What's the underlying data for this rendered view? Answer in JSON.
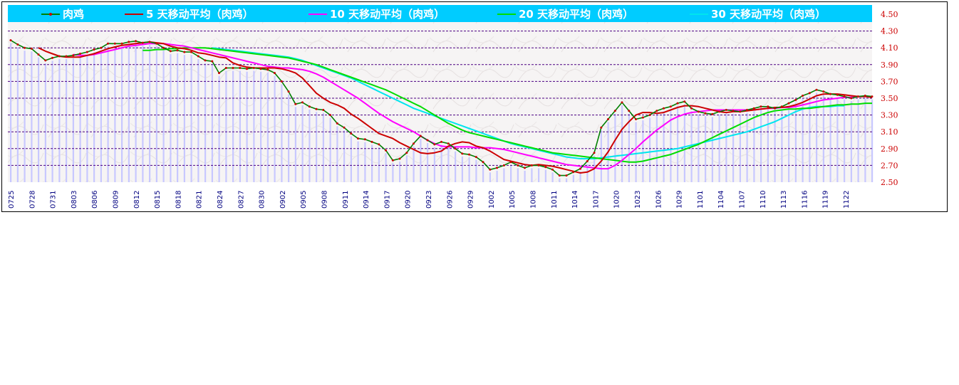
{
  "chart_data": {
    "type": "line",
    "legend_position": "top",
    "colors": {
      "legend_bg": "#00ccff",
      "grid": "#4b0082",
      "bars": "#c8c8ff",
      "ytick": "#cc0000",
      "xtick": "#000080"
    },
    "ylim": [
      2.5,
      4.5
    ],
    "yticks": [
      "4.50",
      "4.30",
      "4.10",
      "3.90",
      "3.70",
      "3.50",
      "3.30",
      "3.10",
      "2.90",
      "2.70",
      "2.50"
    ],
    "xtick_labels": [
      "0725",
      "0728",
      "0731",
      "0803",
      "0806",
      "0809",
      "0812",
      "0815",
      "0818",
      "0821",
      "0824",
      "0827",
      "0830",
      "0902",
      "0905",
      "0908",
      "0911",
      "0914",
      "0917",
      "0920",
      "0923",
      "0926",
      "0929",
      "1002",
      "1005",
      "1008",
      "1011",
      "1014",
      "1017",
      "1020",
      "1023",
      "1026",
      "1029",
      "1101",
      "1104",
      "1107",
      "1110",
      "1113",
      "1116",
      "1119",
      "1122"
    ],
    "series": [
      {
        "name": "肉鸡",
        "color": "#008000",
        "marker_color": "#cc0000",
        "values": [
          4.19,
          4.14,
          4.1,
          4.09,
          4.02,
          3.95,
          3.98,
          4.0,
          4.0,
          4.01,
          4.03,
          4.05,
          4.08,
          4.1,
          4.15,
          4.15,
          4.15,
          4.17,
          4.18,
          4.16,
          4.17,
          4.15,
          4.1,
          4.06,
          4.07,
          4.05,
          4.05,
          4.0,
          3.95,
          3.94,
          3.8,
          3.86,
          3.86,
          3.86,
          3.85,
          3.86,
          3.85,
          3.84,
          3.8,
          3.7,
          3.58,
          3.43,
          3.45,
          3.4,
          3.37,
          3.36,
          3.3,
          3.2,
          3.15,
          3.08,
          3.02,
          3.01,
          2.98,
          2.95,
          2.88,
          2.76,
          2.78,
          2.85,
          2.96,
          3.05,
          3.0,
          2.95,
          2.98,
          2.96,
          2.9,
          2.84,
          2.83,
          2.8,
          2.74,
          2.65,
          2.67,
          2.7,
          2.74,
          2.7,
          2.67,
          2.7,
          2.7,
          2.68,
          2.65,
          2.58,
          2.58,
          2.62,
          2.66,
          2.75,
          2.85,
          3.15,
          3.25,
          3.35,
          3.45,
          3.35,
          3.25,
          3.27,
          3.3,
          3.35,
          3.38,
          3.4,
          3.44,
          3.46,
          3.38,
          3.34,
          3.32,
          3.31,
          3.34,
          3.36,
          3.35,
          3.34,
          3.36,
          3.38,
          3.4,
          3.4,
          3.38,
          3.4,
          3.44,
          3.48,
          3.53,
          3.56,
          3.6,
          3.58,
          3.55,
          3.54,
          3.52,
          3.5,
          3.52,
          3.53,
          3.52
        ]
      },
      {
        "name": "5  天移动平均（肉鸡）",
        "color": "#cc0000",
        "start": 4,
        "values": [
          4.1,
          4.06,
          4.03,
          4.0,
          3.99,
          3.99,
          3.99,
          4.01,
          4.03,
          4.06,
          4.09,
          4.11,
          4.13,
          4.14,
          4.15,
          4.16,
          4.17,
          4.16,
          4.15,
          4.12,
          4.1,
          4.09,
          4.07,
          4.04,
          4.03,
          4.01,
          3.99,
          3.98,
          3.92,
          3.89,
          3.87,
          3.86,
          3.86,
          3.86,
          3.86,
          3.85,
          3.83,
          3.8,
          3.74,
          3.65,
          3.56,
          3.5,
          3.45,
          3.42,
          3.38,
          3.31,
          3.26,
          3.2,
          3.14,
          3.08,
          3.05,
          3.02,
          2.97,
          2.93,
          2.89,
          2.85,
          2.84,
          2.85,
          2.87,
          2.93,
          2.96,
          2.98,
          2.97,
          2.93,
          2.91,
          2.87,
          2.82,
          2.77,
          2.75,
          2.73,
          2.71,
          2.7,
          2.71,
          2.7,
          2.69,
          2.67,
          2.65,
          2.63,
          2.61,
          2.62,
          2.66,
          2.75,
          2.86,
          3.0,
          3.13,
          3.22,
          3.3,
          3.33,
          3.33,
          3.32,
          3.33,
          3.36,
          3.39,
          3.41,
          3.41,
          3.4,
          3.38,
          3.36,
          3.34,
          3.33,
          3.34,
          3.34,
          3.35,
          3.36,
          3.37,
          3.38,
          3.39,
          3.39,
          3.4,
          3.42,
          3.45,
          3.49,
          3.53,
          3.55,
          3.55,
          3.55,
          3.54,
          3.53,
          3.52,
          3.52,
          3.51
        ]
      },
      {
        "name": "10  天移动平均（肉鸡）",
        "color": "#ff00ff",
        "start": 9,
        "values": [
          4.02,
          4.01,
          4.01,
          4.02,
          4.04,
          4.06,
          4.08,
          4.1,
          4.12,
          4.13,
          4.14,
          4.15,
          4.15,
          4.15,
          4.14,
          4.13,
          4.12,
          4.1,
          4.08,
          4.06,
          4.04,
          4.02,
          4.0,
          3.98,
          3.96,
          3.94,
          3.92,
          3.9,
          3.88,
          3.87,
          3.86,
          3.86,
          3.85,
          3.84,
          3.82,
          3.79,
          3.75,
          3.7,
          3.65,
          3.6,
          3.55,
          3.5,
          3.44,
          3.38,
          3.32,
          3.27,
          3.22,
          3.18,
          3.14,
          3.1,
          3.05,
          3.0,
          2.96,
          2.93,
          2.92,
          2.92,
          2.92,
          2.92,
          2.91,
          2.91,
          2.91,
          2.9,
          2.89,
          2.87,
          2.85,
          2.83,
          2.81,
          2.79,
          2.77,
          2.75,
          2.73,
          2.71,
          2.7,
          2.69,
          2.68,
          2.67,
          2.66,
          2.66,
          2.7,
          2.76,
          2.83,
          2.9,
          2.98,
          3.05,
          3.12,
          3.18,
          3.24,
          3.28,
          3.31,
          3.33,
          3.34,
          3.35,
          3.36,
          3.36,
          3.36,
          3.36,
          3.36,
          3.36,
          3.36,
          3.37,
          3.38,
          3.38,
          3.39,
          3.39,
          3.4,
          3.42,
          3.44,
          3.46,
          3.48,
          3.49,
          3.5,
          3.51,
          3.51,
          3.52,
          3.52,
          3.52
        ]
      },
      {
        "name": "20  天移动平均（肉鸡）",
        "color": "#00dd00",
        "start": 19,
        "values": [
          4.07,
          4.07,
          4.08,
          4.08,
          4.09,
          4.09,
          4.1,
          4.1,
          4.1,
          4.1,
          4.09,
          4.08,
          4.07,
          4.06,
          4.05,
          4.04,
          4.03,
          4.02,
          4.01,
          4.0,
          3.99,
          3.98,
          3.96,
          3.94,
          3.92,
          3.9,
          3.87,
          3.84,
          3.81,
          3.78,
          3.75,
          3.72,
          3.69,
          3.66,
          3.63,
          3.6,
          3.56,
          3.52,
          3.48,
          3.44,
          3.4,
          3.35,
          3.3,
          3.25,
          3.2,
          3.16,
          3.12,
          3.09,
          3.07,
          3.05,
          3.03,
          3.01,
          2.99,
          2.97,
          2.95,
          2.93,
          2.91,
          2.89,
          2.87,
          2.85,
          2.84,
          2.83,
          2.82,
          2.81,
          2.8,
          2.79,
          2.78,
          2.77,
          2.76,
          2.75,
          2.74,
          2.74,
          2.75,
          2.77,
          2.79,
          2.81,
          2.83,
          2.86,
          2.89,
          2.92,
          2.95,
          2.99,
          3.03,
          3.07,
          3.11,
          3.15,
          3.19,
          3.23,
          3.27,
          3.3,
          3.33,
          3.35,
          3.36,
          3.37,
          3.37,
          3.38,
          3.38,
          3.39,
          3.4,
          3.41,
          3.42,
          3.42,
          3.43,
          3.43,
          3.44,
          3.44
        ]
      },
      {
        "name": "30  天移动平均（肉鸡）",
        "color": "#00e5ee",
        "start": 29,
        "values": [
          4.1,
          4.09,
          4.08,
          4.07,
          4.06,
          4.05,
          4.04,
          4.03,
          4.02,
          4.01,
          4.0,
          3.99,
          3.97,
          3.95,
          3.92,
          3.89,
          3.86,
          3.83,
          3.8,
          3.77,
          3.74,
          3.7,
          3.66,
          3.62,
          3.58,
          3.54,
          3.5,
          3.46,
          3.42,
          3.38,
          3.35,
          3.32,
          3.29,
          3.26,
          3.23,
          3.2,
          3.17,
          3.14,
          3.11,
          3.08,
          3.05,
          3.02,
          2.99,
          2.96,
          2.94,
          2.92,
          2.9,
          2.88,
          2.86,
          2.84,
          2.82,
          2.8,
          2.79,
          2.78,
          2.78,
          2.78,
          2.79,
          2.8,
          2.81,
          2.82,
          2.83,
          2.84,
          2.85,
          2.86,
          2.87,
          2.88,
          2.89,
          2.9,
          2.92,
          2.94,
          2.96,
          2.98,
          3.0,
          3.02,
          3.04,
          3.06,
          3.08,
          3.1,
          3.13,
          3.16,
          3.19,
          3.22,
          3.26,
          3.3,
          3.34,
          3.37,
          3.39,
          3.4,
          3.4,
          3.4,
          3.41,
          3.41
        ]
      }
    ]
  }
}
